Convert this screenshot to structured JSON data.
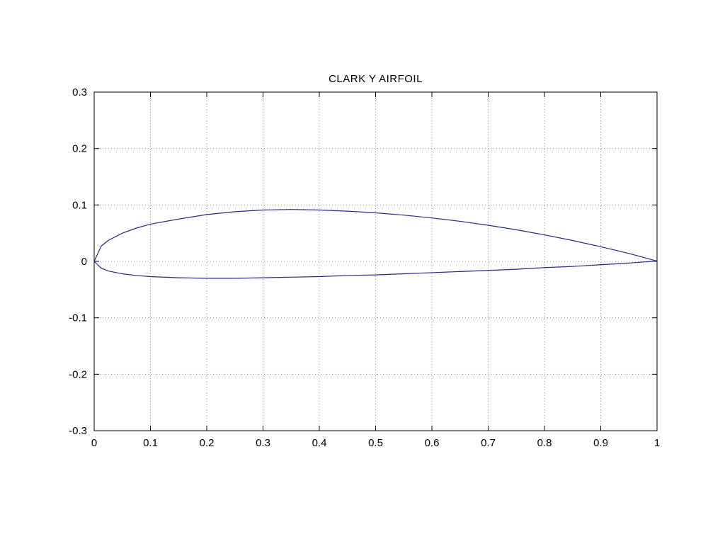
{
  "chart_data": {
    "type": "line",
    "title": "CLARK Y AIRFOIL",
    "xlabel": "",
    "ylabel": "",
    "xlim": [
      0,
      1
    ],
    "ylim": [
      -0.3,
      0.3
    ],
    "xticks": [
      0,
      0.1,
      0.2,
      0.3,
      0.4,
      0.5,
      0.6,
      0.7,
      0.8,
      0.9,
      1
    ],
    "xtick_labels": [
      "0",
      "0.1",
      "0.2",
      "0.3",
      "0.4",
      "0.5",
      "0.6",
      "0.7",
      "0.8",
      "0.9",
      "1"
    ],
    "yticks": [
      -0.3,
      -0.2,
      -0.1,
      0,
      0.1,
      0.2,
      0.3
    ],
    "ytick_labels": [
      "-0.3",
      "-0.2",
      "-0.1",
      "0",
      "0.1",
      "0.2",
      "0.3"
    ],
    "grid": true,
    "grid_style": "dotted",
    "legend": "none",
    "colors": {
      "line": "#28288a",
      "axis": "#000000",
      "grid": "#8c8c8c",
      "background": "#ffffff",
      "text": "#000000"
    },
    "series": [
      {
        "name": "clark-y-airfoil-outline",
        "x": [
          1.0,
          0.95,
          0.9,
          0.85,
          0.8,
          0.75,
          0.7,
          0.65,
          0.6,
          0.55,
          0.5,
          0.45,
          0.4,
          0.35,
          0.3,
          0.25,
          0.2,
          0.15,
          0.1,
          0.075,
          0.05,
          0.025,
          0.0125,
          0.0,
          0.0125,
          0.025,
          0.05,
          0.075,
          0.1,
          0.15,
          0.2,
          0.25,
          0.3,
          0.35,
          0.4,
          0.45,
          0.5,
          0.55,
          0.6,
          0.65,
          0.7,
          0.75,
          0.8,
          0.85,
          0.9,
          0.95,
          1.0
        ],
        "y": [
          0.0006,
          0.014,
          0.026,
          0.037,
          0.047,
          0.056,
          0.064,
          0.071,
          0.077,
          0.082,
          0.086,
          0.089,
          0.091,
          0.092,
          0.091,
          0.088,
          0.083,
          0.075,
          0.066,
          0.059,
          0.05,
          0.037,
          0.027,
          0.0,
          -0.012,
          -0.017,
          -0.022,
          -0.025,
          -0.027,
          -0.029,
          -0.03,
          -0.03,
          -0.029,
          -0.028,
          -0.027,
          -0.025,
          -0.024,
          -0.022,
          -0.02,
          -0.018,
          -0.016,
          -0.014,
          -0.011,
          -0.009,
          -0.006,
          -0.003,
          0.0006
        ]
      }
    ]
  }
}
